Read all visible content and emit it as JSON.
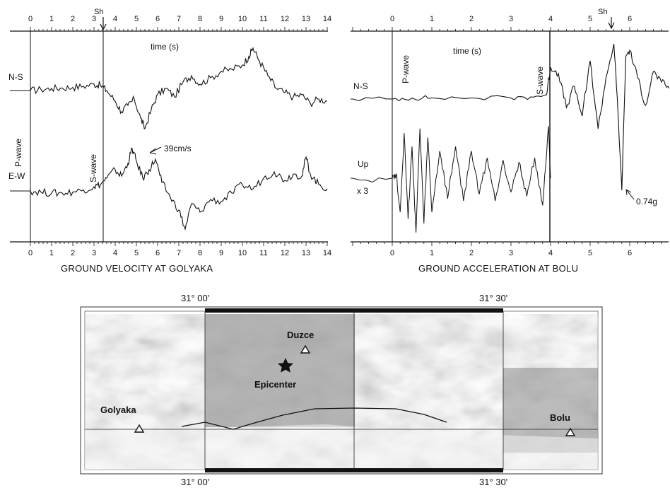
{
  "chart_data": [
    {
      "type": "line",
      "caption": "GROUND VELOCITY AT GOLYAKA",
      "xlabel": "time (s)",
      "xlim": [
        0,
        14
      ],
      "xticks": [
        "0",
        "1",
        "2",
        "3",
        "4",
        "5",
        "6",
        "7",
        "8",
        "9",
        "10",
        "11",
        "12",
        "13",
        "14"
      ],
      "markers": {
        "sh": "Sh",
        "p_wave": "P-wave",
        "s_wave": "S-wave"
      },
      "series": [
        {
          "name": "N-S",
          "x": [
            0,
            0.5,
            1,
            1.5,
            2,
            2.5,
            3,
            3.3,
            3.6,
            4,
            4.3,
            4.6,
            4.9,
            5.2,
            5.4,
            5.7,
            6,
            6.4,
            6.8,
            7.2,
            7.6,
            8,
            8.5,
            9,
            9.5,
            10,
            10.3,
            10.5,
            10.8,
            11.2,
            11.6,
            12,
            12.4,
            12.8,
            13.2,
            13.6,
            14
          ],
          "y": [
            0,
            0.05,
            0.1,
            0.12,
            0.15,
            0.2,
            0.3,
            0.25,
            0,
            -0.5,
            -1.0,
            -0.7,
            -0.4,
            -1.3,
            -1.8,
            -0.9,
            -0.2,
            0.1,
            -0.3,
            0.4,
            0.7,
            0.3,
            0.6,
            0.9,
            1.0,
            1.2,
            1.6,
            2.0,
            1.4,
            0.7,
            0.1,
            -0.1,
            -0.3,
            -0.2,
            -0.6,
            -0.4,
            -0.5
          ]
        },
        {
          "name": "E-W",
          "x": [
            0,
            0.5,
            1,
            1.5,
            2,
            2.5,
            3,
            3.3,
            3.6,
            4,
            4.3,
            4.6,
            4.8,
            5.0,
            5.3,
            5.6,
            5.9,
            6.2,
            6.6,
            7.0,
            7.3,
            7.6,
            8,
            8.5,
            9,
            9.5,
            10,
            10.5,
            11,
            11.5,
            12,
            12.4,
            12.8,
            13,
            13.2,
            13.6,
            14
          ],
          "y": [
            0,
            -0.05,
            -0.1,
            -0.1,
            -0.05,
            0.05,
            0.2,
            0.3,
            0.6,
            1.0,
            0.7,
            1.3,
            2.0,
            1.4,
            0.6,
            1.0,
            1.5,
            0.4,
            -0.3,
            -0.9,
            -1.8,
            -0.6,
            -1.0,
            -0.4,
            -0.5,
            -0.1,
            0.3,
            0.1,
            0.6,
            0.9,
            0.5,
            0.8,
            0.7,
            1.6,
            0.8,
            0.3,
            0.1
          ]
        }
      ],
      "annotations": [
        {
          "text": "39cm/s",
          "x": 5.4,
          "series": "N-S"
        }
      ]
    },
    {
      "type": "line",
      "caption": "GROUND ACCELERATION AT BOLU",
      "xlabel": "time (s)",
      "xlim": [
        -1,
        7
      ],
      "xticks": [
        "0",
        "1",
        "2",
        "3",
        "4",
        "5",
        "6"
      ],
      "markers": {
        "sh": "Sh",
        "p_wave": "P-wave",
        "s_wave": "S-wave"
      },
      "scale_note": "x 3",
      "series": [
        {
          "name": "N-S",
          "x": [
            -1,
            0,
            0.5,
            1,
            2,
            3,
            3.5,
            3.9,
            4.0,
            4.2,
            4.4,
            4.6,
            4.8,
            5.0,
            5.2,
            5.4,
            5.6,
            5.7,
            5.8,
            5.9,
            6.0,
            6.2,
            6.4,
            6.6,
            6.8,
            7.0
          ],
          "y": [
            0,
            0,
            0.05,
            0.05,
            0.05,
            0.05,
            0.1,
            0.2,
            1.5,
            1.2,
            -0.4,
            0.6,
            -0.8,
            1.8,
            -1.4,
            1.0,
            2.6,
            -0.5,
            -4.3,
            2.0,
            2.3,
            1.0,
            -0.3,
            1.3,
            0.8,
            0.5
          ]
        },
        {
          "name": "Up",
          "x": [
            -1,
            0,
            0.1,
            0.2,
            0.3,
            0.4,
            0.5,
            0.6,
            0.7,
            0.8,
            0.9,
            1.0,
            1.2,
            1.4,
            1.6,
            1.8,
            2.0,
            2.2,
            2.4,
            2.6,
            2.8,
            3.0,
            3.2,
            3.4,
            3.6,
            3.8,
            3.95,
            4.0
          ],
          "y": [
            0,
            0,
            0.2,
            -1.5,
            2.0,
            -1.8,
            1.4,
            -2.4,
            2.2,
            -2.0,
            1.8,
            -1.5,
            1.2,
            -0.9,
            1.4,
            -1.0,
            1.2,
            -0.7,
            0.9,
            -1.0,
            0.8,
            -0.6,
            0.7,
            -0.8,
            0.9,
            -1.2,
            2.3,
            0.0
          ]
        }
      ],
      "annotations": [
        {
          "text": "0.74g",
          "x": 5.8,
          "series": "N-S"
        }
      ]
    }
  ],
  "map": {
    "labels": {
      "duzce": "Duzce",
      "epicenter": "Epicenter",
      "golyaka": "Golyaka",
      "bolu": "Bolu"
    },
    "coords": {
      "left": "31° 00'",
      "right": "31° 30'"
    },
    "icons": {
      "station": "triangle-icon",
      "epicenter": "star-icon"
    }
  }
}
